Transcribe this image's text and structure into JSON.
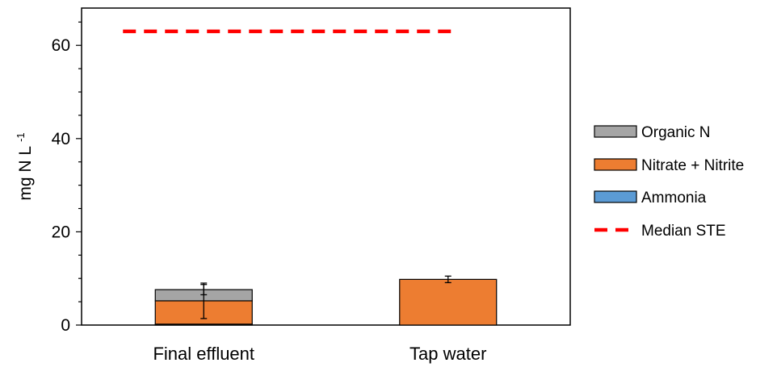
{
  "chart_data": {
    "type": "bar",
    "stacked": true,
    "categories": [
      "Final effluent",
      "Tap water"
    ],
    "series": [
      {
        "name": "Ammonia",
        "values": [
          0.2,
          0.0
        ],
        "color": "#5b9bd5"
      },
      {
        "name": "Nitrate + Nitrite",
        "values": [
          5.0,
          9.8
        ],
        "color": "#ed7d31",
        "error": [
          3.8,
          0.7
        ]
      },
      {
        "name": "Organic N",
        "values": [
          2.4,
          0.0
        ],
        "color": "#a5a5a5",
        "error": [
          1.1,
          0.0
        ]
      }
    ],
    "reference_line": {
      "name": "Median STE",
      "value": 63,
      "color": "#ff0000",
      "style": "dashed"
    },
    "ylabel": "mg N L",
    "ylabel_superscript": "-1",
    "ylim": [
      0,
      68
    ],
    "yticks": [
      0,
      20,
      40,
      60
    ],
    "grid": false,
    "legend_position": "right",
    "legend": [
      "Organic N",
      "Nitrate + Nitrite",
      "Ammonia",
      "Median STE"
    ]
  }
}
